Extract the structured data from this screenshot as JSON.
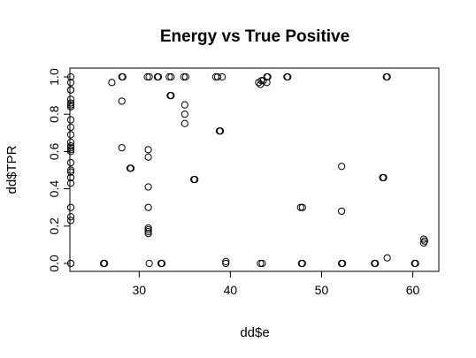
{
  "chart_data": {
    "type": "scatter",
    "title": "Energy vs True Positive",
    "xlabel": "dd$e",
    "ylabel": "dd$TPR",
    "xlim": [
      22.5,
      61.5
    ],
    "ylim": [
      0,
      1
    ],
    "xticks": [
      {
        "value": 30,
        "label": "30"
      },
      {
        "value": 40,
        "label": "40"
      },
      {
        "value": 50,
        "label": "50"
      },
      {
        "value": 60,
        "label": "60"
      }
    ],
    "yticks": [
      {
        "value": 0.0,
        "label": "0.0"
      },
      {
        "value": 0.2,
        "label": "0.2"
      },
      {
        "value": 0.4,
        "label": "0.4"
      },
      {
        "value": 0.6,
        "label": "0.6"
      },
      {
        "value": 0.8,
        "label": "0.8"
      },
      {
        "value": 1.0,
        "label": "1.0"
      }
    ],
    "grid": false,
    "points": [
      [
        22.5,
        1.0
      ],
      [
        22.5,
        0.97
      ],
      [
        22.5,
        0.93
      ],
      [
        22.5,
        0.93
      ],
      [
        22.5,
        0.88
      ],
      [
        22.5,
        0.86
      ],
      [
        22.5,
        0.85
      ],
      [
        22.5,
        0.84
      ],
      [
        22.5,
        0.84
      ],
      [
        22.5,
        0.77
      ],
      [
        22.5,
        0.73
      ],
      [
        22.5,
        0.69
      ],
      [
        22.5,
        0.65
      ],
      [
        22.5,
        0.63
      ],
      [
        22.5,
        0.62
      ],
      [
        22.5,
        0.61
      ],
      [
        22.5,
        0.6
      ],
      [
        22.5,
        0.54
      ],
      [
        22.5,
        0.5
      ],
      [
        22.5,
        0.49
      ],
      [
        22.5,
        0.46
      ],
      [
        22.5,
        0.43
      ],
      [
        22.5,
        0.3
      ],
      [
        22.5,
        0.25
      ],
      [
        22.5,
        0.23
      ],
      [
        22.5,
        0.0
      ],
      [
        22.5,
        0.0
      ],
      [
        26.1,
        0.0
      ],
      [
        26.2,
        0.0
      ],
      [
        27.0,
        0.97
      ],
      [
        28.1,
        1.0
      ],
      [
        28.2,
        1.0
      ],
      [
        28.1,
        0.87
      ],
      [
        28.1,
        0.62
      ],
      [
        29.0,
        0.51
      ],
      [
        29.1,
        0.51
      ],
      [
        30.9,
        1.0
      ],
      [
        31.1,
        1.0
      ],
      [
        31.0,
        0.61
      ],
      [
        31.0,
        0.57
      ],
      [
        31.0,
        0.41
      ],
      [
        31.0,
        0.3
      ],
      [
        31.0,
        0.19
      ],
      [
        31.0,
        0.18
      ],
      [
        31.0,
        0.17
      ],
      [
        31.0,
        0.16
      ],
      [
        31.1,
        0.0
      ],
      [
        32.0,
        1.0
      ],
      [
        32.1,
        1.0
      ],
      [
        32.4,
        0.0
      ],
      [
        32.5,
        0.0
      ],
      [
        33.3,
        1.0
      ],
      [
        33.5,
        1.0
      ],
      [
        33.4,
        0.9
      ],
      [
        33.5,
        0.9
      ],
      [
        34.9,
        1.0
      ],
      [
        35.1,
        1.0
      ],
      [
        35.0,
        0.85
      ],
      [
        35.0,
        0.8
      ],
      [
        35.0,
        0.75
      ],
      [
        36.0,
        0.45
      ],
      [
        36.1,
        0.45
      ],
      [
        38.4,
        1.0
      ],
      [
        38.6,
        1.0
      ],
      [
        39.1,
        1.0
      ],
      [
        38.8,
        0.71
      ],
      [
        38.9,
        0.71
      ],
      [
        39.5,
        0.01
      ],
      [
        39.5,
        0.0
      ],
      [
        43.1,
        0.97
      ],
      [
        43.3,
        0.96
      ],
      [
        43.4,
        0.98
      ],
      [
        43.6,
        0.98
      ],
      [
        43.3,
        0.0
      ],
      [
        43.5,
        0.0
      ],
      [
        44.0,
        1.0
      ],
      [
        44.1,
        1.0
      ],
      [
        44.0,
        0.97
      ],
      [
        46.2,
        1.0
      ],
      [
        46.3,
        1.0
      ],
      [
        47.7,
        0.3
      ],
      [
        47.9,
        0.3
      ],
      [
        47.8,
        0.0
      ],
      [
        47.9,
        0.0
      ],
      [
        52.2,
        0.52
      ],
      [
        52.2,
        0.28
      ],
      [
        52.2,
        0.0
      ],
      [
        52.3,
        0.0
      ],
      [
        55.8,
        0.0
      ],
      [
        55.9,
        0.0
      ],
      [
        56.7,
        0.46
      ],
      [
        56.8,
        0.46
      ],
      [
        57.1,
        1.0
      ],
      [
        57.2,
        1.0
      ],
      [
        57.2,
        0.03
      ],
      [
        60.2,
        0.0
      ],
      [
        60.3,
        0.0
      ],
      [
        61.2,
        0.13
      ],
      [
        61.3,
        0.12
      ],
      [
        61.2,
        0.11
      ]
    ]
  }
}
